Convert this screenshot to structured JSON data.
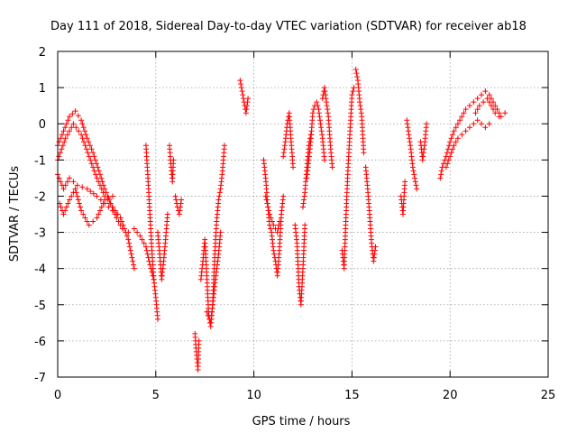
{
  "chart_data": {
    "type": "scatter",
    "title": "Day 111 of 2018, Sidereal Day-to-day VTEC variation (SDTVAR) for receiver ab18",
    "xlabel": "GPS time / hours",
    "ylabel": "SDTVAR / TECUs",
    "xlim": [
      0,
      25
    ],
    "ylim": [
      -7,
      2
    ],
    "xticks": [
      0,
      5,
      10,
      15,
      20,
      25
    ],
    "yticks": [
      -7,
      -6,
      -5,
      -4,
      -3,
      -2,
      -1,
      0,
      1,
      2
    ],
    "grid": true,
    "marker": "+",
    "marker_color": "#ff0000",
    "series": [
      {
        "name": "SDTVAR",
        "segments": [
          [
            [
              0.0,
              -0.6
            ],
            [
              0.3,
              -0.2
            ],
            [
              0.6,
              0.2
            ],
            [
              0.9,
              0.35
            ],
            [
              1.2,
              0.1
            ],
            [
              1.5,
              -0.4
            ],
            [
              1.8,
              -0.8
            ],
            [
              2.1,
              -1.3
            ],
            [
              2.4,
              -1.8
            ],
            [
              2.7,
              -2.2
            ],
            [
              3.0,
              -2.6
            ],
            [
              3.3,
              -2.9
            ],
            [
              3.6,
              -3.0
            ],
            [
              3.9,
              -2.9
            ],
            [
              4.2,
              -3.1
            ],
            [
              4.5,
              -3.4
            ],
            [
              4.7,
              -3.9
            ],
            [
              4.9,
              -4.3
            ]
          ],
          [
            [
              0.0,
              -1.0
            ],
            [
              0.4,
              -0.4
            ],
            [
              0.8,
              0.0
            ],
            [
              1.2,
              -0.3
            ],
            [
              1.6,
              -0.9
            ],
            [
              2.0,
              -1.5
            ],
            [
              2.4,
              -2.0
            ],
            [
              2.8,
              -2.3
            ],
            [
              3.2,
              -2.6
            ],
            [
              3.6,
              -3.2
            ],
            [
              3.9,
              -4.0
            ]
          ],
          [
            [
              0.0,
              -1.4
            ],
            [
              0.3,
              -1.8
            ],
            [
              0.6,
              -1.5
            ],
            [
              1.0,
              -1.7
            ],
            [
              1.5,
              -1.8
            ],
            [
              2.0,
              -2.0
            ],
            [
              2.4,
              -2.2
            ],
            [
              2.8,
              -2.4
            ],
            [
              3.2,
              -2.6
            ]
          ],
          [
            [
              0.1,
              -2.2
            ],
            [
              0.3,
              -2.5
            ],
            [
              0.6,
              -2.1
            ],
            [
              0.9,
              -1.8
            ],
            [
              1.2,
              -2.4
            ],
            [
              1.6,
              -2.8
            ],
            [
              2.0,
              -2.6
            ],
            [
              2.4,
              -2.1
            ],
            [
              2.8,
              -2.0
            ]
          ],
          [
            [
              4.5,
              -0.6
            ],
            [
              4.6,
              -1.5
            ],
            [
              4.7,
              -2.5
            ],
            [
              4.8,
              -3.5
            ],
            [
              4.9,
              -4.3
            ],
            [
              5.0,
              -4.8
            ],
            [
              5.1,
              -5.4
            ]
          ],
          [
            [
              5.1,
              -3.0
            ],
            [
              5.2,
              -3.6
            ],
            [
              5.3,
              -4.3
            ],
            [
              5.4,
              -3.8
            ],
            [
              5.5,
              -3.2
            ],
            [
              5.6,
              -2.5
            ]
          ],
          [
            [
              5.7,
              -0.6
            ],
            [
              5.75,
              -1.0
            ],
            [
              5.8,
              -1.3
            ],
            [
              5.85,
              -1.6
            ],
            [
              5.9,
              -1.0
            ]
          ],
          [
            [
              6.0,
              -2.0
            ],
            [
              6.1,
              -2.3
            ],
            [
              6.2,
              -2.5
            ],
            [
              6.3,
              -2.1
            ]
          ],
          [
            [
              7.0,
              -5.8
            ],
            [
              7.05,
              -6.2
            ],
            [
              7.1,
              -6.5
            ],
            [
              7.15,
              -6.8
            ],
            [
              7.2,
              -6.0
            ]
          ],
          [
            [
              7.3,
              -4.3
            ],
            [
              7.4,
              -3.8
            ],
            [
              7.5,
              -3.2
            ],
            [
              7.6,
              -4.2
            ],
            [
              7.7,
              -5.3
            ],
            [
              7.8,
              -5.6
            ],
            [
              7.9,
              -5.0
            ],
            [
              8.0,
              -3.7
            ],
            [
              8.1,
              -2.7
            ],
            [
              8.2,
              -2.1
            ],
            [
              8.3,
              -1.8
            ],
            [
              8.4,
              -1.3
            ],
            [
              8.5,
              -0.6
            ]
          ],
          [
            [
              7.6,
              -5.2
            ],
            [
              7.8,
              -5.5
            ],
            [
              8.0,
              -4.5
            ],
            [
              8.2,
              -3.6
            ],
            [
              8.3,
              -3.0
            ]
          ],
          [
            [
              9.3,
              1.2
            ],
            [
              9.4,
              0.9
            ],
            [
              9.5,
              0.6
            ],
            [
              9.6,
              0.3
            ],
            [
              9.7,
              0.7
            ]
          ],
          [
            [
              10.5,
              -1.0
            ],
            [
              10.6,
              -1.5
            ],
            [
              10.7,
              -2.2
            ],
            [
              10.8,
              -2.8
            ],
            [
              10.9,
              -3.0
            ],
            [
              11.0,
              -3.5
            ],
            [
              11.1,
              -3.8
            ],
            [
              11.2,
              -4.2
            ],
            [
              11.3,
              -3.5
            ],
            [
              11.4,
              -2.5
            ],
            [
              11.5,
              -2.0
            ]
          ],
          [
            [
              10.6,
              -2.0
            ],
            [
              10.8,
              -2.5
            ],
            [
              11.0,
              -2.8
            ],
            [
              11.2,
              -3.0
            ],
            [
              11.3,
              -2.7
            ]
          ],
          [
            [
              11.5,
              -0.9
            ],
            [
              11.6,
              -0.5
            ],
            [
              11.7,
              0.0
            ],
            [
              11.8,
              0.3
            ],
            [
              11.9,
              -0.5
            ],
            [
              12.0,
              -1.2
            ]
          ],
          [
            [
              12.1,
              -2.8
            ],
            [
              12.2,
              -3.3
            ],
            [
              12.3,
              -4.5
            ],
            [
              12.4,
              -5.0
            ],
            [
              12.5,
              -4.0
            ],
            [
              12.6,
              -2.8
            ]
          ],
          [
            [
              12.7,
              -1.5
            ],
            [
              12.8,
              -1.0
            ],
            [
              12.9,
              -0.5
            ],
            [
              13.0,
              0.3
            ],
            [
              13.1,
              0.5
            ],
            [
              13.2,
              0.6
            ],
            [
              13.3,
              0.4
            ],
            [
              13.4,
              0.0
            ],
            [
              13.5,
              -0.4
            ],
            [
              13.6,
              -1.0
            ]
          ],
          [
            [
              12.5,
              -2.3
            ],
            [
              12.6,
              -1.9
            ],
            [
              12.7,
              -1.2
            ],
            [
              12.8,
              -0.6
            ],
            [
              12.9,
              -0.3
            ]
          ],
          [
            [
              13.5,
              0.7
            ],
            [
              13.6,
              1.0
            ],
            [
              13.7,
              0.6
            ],
            [
              13.8,
              0.2
            ],
            [
              13.9,
              -0.6
            ],
            [
              14.0,
              -1.2
            ]
          ],
          [
            [
              14.5,
              -3.5
            ],
            [
              14.6,
              -4.0
            ],
            [
              14.7,
              -2.5
            ],
            [
              14.8,
              -1.2
            ],
            [
              14.9,
              -0.2
            ],
            [
              15.0,
              0.8
            ],
            [
              15.1,
              1.0
            ]
          ],
          [
            [
              15.2,
              1.5
            ],
            [
              15.3,
              1.2
            ],
            [
              15.4,
              0.6
            ],
            [
              15.5,
              0.2
            ],
            [
              15.6,
              -0.8
            ]
          ],
          [
            [
              15.7,
              -1.2
            ],
            [
              15.8,
              -1.8
            ],
            [
              15.9,
              -2.5
            ],
            [
              16.0,
              -3.3
            ],
            [
              16.1,
              -3.8
            ],
            [
              16.2,
              -3.4
            ]
          ],
          [
            [
              17.5,
              -2.0
            ],
            [
              17.6,
              -2.5
            ],
            [
              17.7,
              -1.6
            ]
          ],
          [
            [
              17.8,
              0.1
            ],
            [
              17.9,
              -0.3
            ],
            [
              18.0,
              -0.7
            ],
            [
              18.1,
              -1.2
            ],
            [
              18.2,
              -1.5
            ],
            [
              18.3,
              -1.8
            ]
          ],
          [
            [
              18.5,
              -0.5
            ],
            [
              18.6,
              -1.0
            ],
            [
              18.7,
              -0.6
            ],
            [
              18.8,
              0.0
            ]
          ],
          [
            [
              19.5,
              -1.5
            ],
            [
              19.6,
              -1.2
            ],
            [
              19.8,
              -0.9
            ],
            [
              20.0,
              -0.5
            ],
            [
              20.2,
              -0.2
            ],
            [
              20.4,
              0.0
            ],
            [
              20.6,
              0.2
            ],
            [
              20.8,
              0.4
            ],
            [
              21.0,
              0.5
            ],
            [
              21.2,
              0.6
            ],
            [
              21.4,
              0.7
            ],
            [
              21.6,
              0.8
            ],
            [
              21.8,
              0.9
            ],
            [
              22.0,
              0.8
            ],
            [
              22.2,
              0.6
            ],
            [
              22.4,
              0.4
            ],
            [
              22.6,
              0.2
            ],
            [
              22.8,
              0.3
            ]
          ],
          [
            [
              19.8,
              -1.2
            ],
            [
              20.0,
              -0.9
            ],
            [
              20.2,
              -0.6
            ],
            [
              20.4,
              -0.4
            ],
            [
              20.6,
              -0.3
            ],
            [
              20.8,
              -0.2
            ],
            [
              21.0,
              -0.1
            ],
            [
              21.2,
              0.0
            ],
            [
              21.4,
              0.1
            ],
            [
              21.6,
              0.0
            ],
            [
              21.8,
              -0.1
            ],
            [
              22.0,
              0.0
            ]
          ],
          [
            [
              21.3,
              0.3
            ],
            [
              21.5,
              0.5
            ],
            [
              21.7,
              0.6
            ],
            [
              21.9,
              0.7
            ],
            [
              22.1,
              0.5
            ],
            [
              22.3,
              0.3
            ],
            [
              22.5,
              0.2
            ]
          ]
        ]
      }
    ]
  }
}
